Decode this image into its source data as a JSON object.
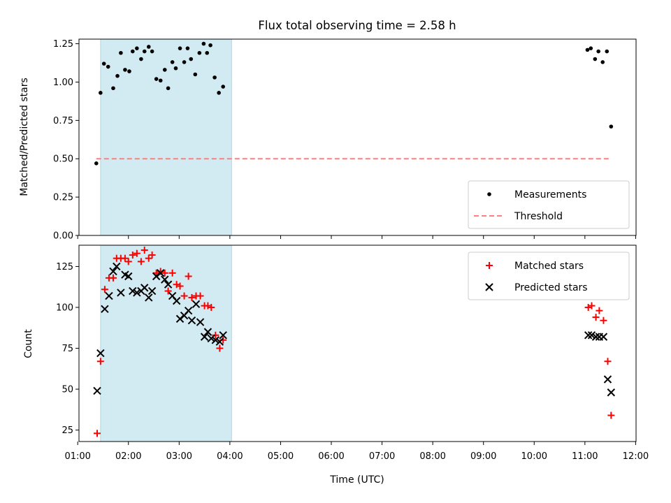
{
  "title": "Flux total observing time = 2.58 h",
  "xlabel": "Time (UTC)",
  "colors": {
    "measurement": "#000000",
    "threshold": "#ff7f7f",
    "matched": "#ff0000",
    "predicted": "#000000",
    "band": "#add8e6"
  },
  "chart_data": [
    {
      "type": "scatter",
      "ylabel": "Matched/Predicted stars",
      "ylim": [
        0,
        1.28
      ],
      "yticks": [
        "0.00",
        "0.25",
        "0.50",
        "0.75",
        "1.00",
        "1.25"
      ],
      "xlim": [
        "01:20",
        "12:00"
      ],
      "shaded_band": [
        "01:27",
        "04:02"
      ],
      "legend": {
        "position": "lower right",
        "entries": [
          "Measurements",
          "Threshold"
        ]
      },
      "series": [
        {
          "name": "Measurements",
          "marker": "dot",
          "points": [
            [
              "01:22",
              0.47
            ],
            [
              "01:27",
              0.93
            ],
            [
              "01:31",
              1.12
            ],
            [
              "01:36",
              1.1
            ],
            [
              "01:42",
              0.96
            ],
            [
              "01:47",
              1.04
            ],
            [
              "01:51",
              1.19
            ],
            [
              "01:56",
              1.08
            ],
            [
              "02:01",
              1.07
            ],
            [
              "02:05",
              1.2
            ],
            [
              "02:10",
              1.22
            ],
            [
              "02:15",
              1.15
            ],
            [
              "02:19",
              1.2
            ],
            [
              "02:24",
              1.23
            ],
            [
              "02:28",
              1.2
            ],
            [
              "02:33",
              1.02
            ],
            [
              "02:38",
              1.01
            ],
            [
              "02:43",
              1.08
            ],
            [
              "02:47",
              0.96
            ],
            [
              "02:52",
              1.13
            ],
            [
              "02:56",
              1.09
            ],
            [
              "03:01",
              1.22
            ],
            [
              "03:06",
              1.13
            ],
            [
              "03:10",
              1.22
            ],
            [
              "03:14",
              1.15
            ],
            [
              "03:19",
              1.05
            ],
            [
              "03:24",
              1.19
            ],
            [
              "03:29",
              1.25
            ],
            [
              "03:33",
              1.19
            ],
            [
              "03:37",
              1.24
            ],
            [
              "03:42",
              1.03
            ],
            [
              "03:47",
              0.93
            ],
            [
              "03:52",
              0.97
            ],
            [
              "11:03",
              1.21
            ],
            [
              "11:07",
              1.22
            ],
            [
              "11:12",
              1.15
            ],
            [
              "11:16",
              1.2
            ],
            [
              "11:21",
              1.13
            ],
            [
              "11:26",
              1.2
            ],
            [
              "11:31",
              0.71
            ]
          ]
        },
        {
          "name": "Threshold",
          "marker": "dashed-line",
          "points": [
            [
              "01:22",
              0.5
            ],
            [
              "11:31",
              0.5
            ]
          ]
        }
      ]
    },
    {
      "type": "scatter",
      "ylabel": "Count",
      "ylim": [
        18,
        138
      ],
      "yticks": [
        "25",
        "50",
        "75",
        "100",
        "125"
      ],
      "xlim": [
        "01:20",
        "12:00"
      ],
      "xticks": [
        "01:00",
        "02:00",
        "03:00",
        "04:00",
        "05:00",
        "06:00",
        "07:00",
        "08:00",
        "09:00",
        "10:00",
        "11:00",
        "12:00"
      ],
      "shaded_band": [
        "01:27",
        "04:02"
      ],
      "legend": {
        "position": "upper right",
        "entries": [
          "Matched stars",
          "Predicted stars"
        ]
      },
      "series": [
        {
          "name": "Matched stars",
          "marker": "plus",
          "points": [
            [
              "01:23",
              23
            ],
            [
              "01:27",
              67
            ],
            [
              "01:32",
              111
            ],
            [
              "01:37",
              118
            ],
            [
              "01:42",
              118
            ],
            [
              "01:46",
              130
            ],
            [
              "01:51",
              130
            ],
            [
              "01:56",
              130
            ],
            [
              "02:00",
              128
            ],
            [
              "02:05",
              132
            ],
            [
              "02:10",
              133
            ],
            [
              "02:15",
              128
            ],
            [
              "02:19",
              135
            ],
            [
              "02:24",
              130
            ],
            [
              "02:28",
              132
            ],
            [
              "02:33",
              121
            ],
            [
              "02:38",
              122
            ],
            [
              "02:43",
              121
            ],
            [
              "02:47",
              110
            ],
            [
              "02:52",
              121
            ],
            [
              "02:57",
              114
            ],
            [
              "03:01",
              113
            ],
            [
              "03:06",
              107
            ],
            [
              "03:11",
              119
            ],
            [
              "03:15",
              106
            ],
            [
              "03:20",
              107
            ],
            [
              "03:25",
              107
            ],
            [
              "03:30",
              101
            ],
            [
              "03:34",
              101
            ],
            [
              "03:38",
              100
            ],
            [
              "03:43",
              83
            ],
            [
              "03:48",
              75
            ],
            [
              "03:52",
              80
            ],
            [
              "11:04",
              100
            ],
            [
              "11:08",
              101
            ],
            [
              "11:13",
              94
            ],
            [
              "11:17",
              98
            ],
            [
              "11:22",
              92
            ],
            [
              "11:27",
              67
            ],
            [
              "11:31",
              34
            ]
          ]
        },
        {
          "name": "Predicted stars",
          "marker": "x",
          "points": [
            [
              "01:23",
              49
            ],
            [
              "01:27",
              72
            ],
            [
              "01:32",
              99
            ],
            [
              "01:37",
              107
            ],
            [
              "01:42",
              122
            ],
            [
              "01:46",
              125
            ],
            [
              "01:51",
              109
            ],
            [
              "01:56",
              120
            ],
            [
              "02:00",
              119
            ],
            [
              "02:05",
              110
            ],
            [
              "02:10",
              109
            ],
            [
              "02:15",
              110
            ],
            [
              "02:19",
              112
            ],
            [
              "02:24",
              106
            ],
            [
              "02:28",
              110
            ],
            [
              "02:33",
              119
            ],
            [
              "02:38",
              121
            ],
            [
              "02:43",
              117
            ],
            [
              "02:47",
              114
            ],
            [
              "02:52",
              107
            ],
            [
              "02:57",
              104
            ],
            [
              "03:01",
              93
            ],
            [
              "03:06",
              95
            ],
            [
              "03:11",
              98
            ],
            [
              "03:15",
              92
            ],
            [
              "03:20",
              102
            ],
            [
              "03:25",
              91
            ],
            [
              "03:30",
              82
            ],
            [
              "03:34",
              85
            ],
            [
              "03:38",
              81
            ],
            [
              "03:43",
              80
            ],
            [
              "03:48",
              79
            ],
            [
              "03:52",
              83
            ],
            [
              "11:04",
              83
            ],
            [
              "11:08",
              83
            ],
            [
              "11:13",
              82
            ],
            [
              "11:17",
              82
            ],
            [
              "11:22",
              82
            ],
            [
              "11:27",
              56
            ],
            [
              "11:31",
              48
            ]
          ]
        }
      ]
    }
  ]
}
